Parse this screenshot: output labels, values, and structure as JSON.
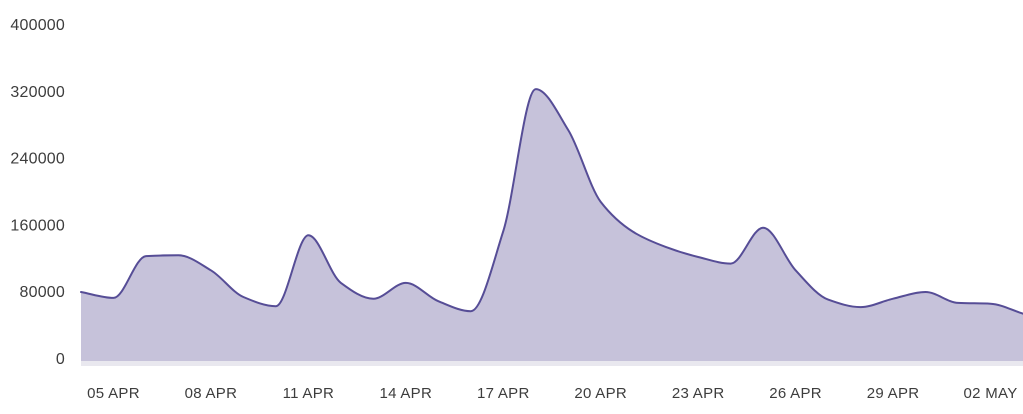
{
  "chart_data": {
    "type": "area",
    "title": "",
    "xlabel": "",
    "ylabel": "",
    "grid": false,
    "legend": false,
    "ylim": [
      0,
      400000
    ],
    "y_ticks": [
      0,
      80000,
      160000,
      240000,
      320000,
      400000
    ],
    "y_tick_labels": [
      "0",
      "80000",
      "160000",
      "240000",
      "320000",
      "400000"
    ],
    "x": [
      "04 APR",
      "05 APR",
      "06 APR",
      "07 APR",
      "08 APR",
      "09 APR",
      "10 APR",
      "11 APR",
      "12 APR",
      "13 APR",
      "14 APR",
      "15 APR",
      "16 APR",
      "17 APR",
      "18 APR",
      "19 APR",
      "20 APR",
      "21 APR",
      "22 APR",
      "23 APR",
      "24 APR",
      "25 APR",
      "26 APR",
      "27 APR",
      "28 APR",
      "29 APR",
      "30 APR",
      "01 MAY",
      "02 MAY",
      "03 MAY"
    ],
    "values": [
      79000,
      72000,
      122000,
      123000,
      105000,
      73000,
      62000,
      147000,
      90000,
      71000,
      90000,
      68000,
      56000,
      152000,
      322000,
      273000,
      187000,
      151000,
      133000,
      121000,
      113000,
      156000,
      105000,
      70000,
      61000,
      71000,
      79000,
      66000,
      65000,
      53000
    ],
    "x_tick_labels": [
      "05 APR",
      "08 APR",
      "11 APR",
      "14 APR",
      "17 APR",
      "20 APR",
      "23 APR",
      "26 APR",
      "29 APR",
      "02 MAY"
    ],
    "x_tick_indices": [
      1,
      4,
      7,
      10,
      13,
      16,
      19,
      22,
      25,
      28
    ],
    "colors": {
      "line_stroke": "#564d96",
      "area_fill": "#c6c2da",
      "baseline_strip": "#e9e8ef",
      "label_color": "#3d3d3d",
      "background": "#ffffff"
    }
  }
}
